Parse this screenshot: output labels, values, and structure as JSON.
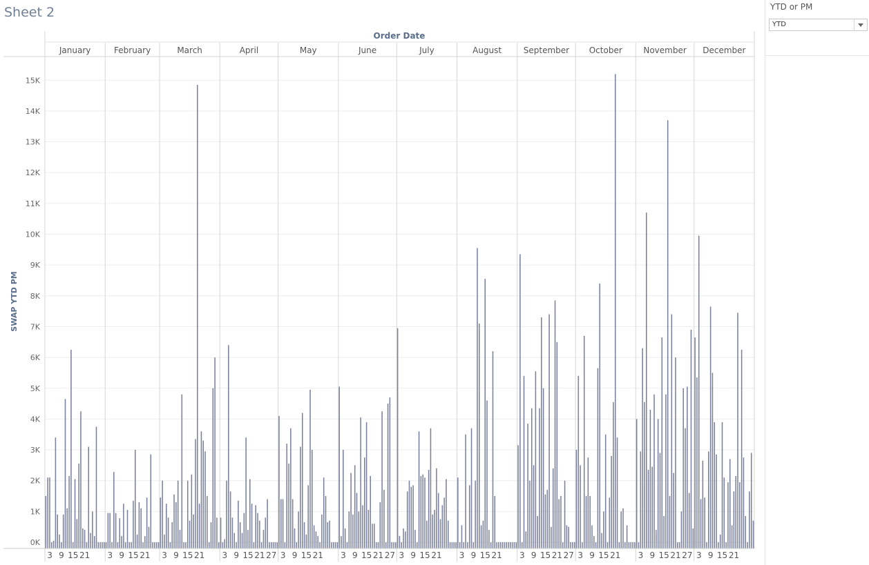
{
  "sheet": {
    "title": "Sheet 2"
  },
  "filter": {
    "title": "YTD or PM",
    "value": "YTD"
  },
  "chart_data": {
    "type": "bar",
    "title": "",
    "column_header": "Order Date",
    "ylabel": "SWAP YTD PM",
    "ylim": [
      -200,
      15800
    ],
    "yticks": [
      0,
      1000,
      2000,
      3000,
      4000,
      5000,
      6000,
      7000,
      8000,
      9000,
      10000,
      11000,
      12000,
      13000,
      14000,
      15000
    ],
    "ytick_labels": [
      "0K",
      "1K",
      "2K",
      "3K",
      "4K",
      "5K",
      "6K",
      "7K",
      "8K",
      "9K",
      "10K",
      "11K",
      "12K",
      "13K",
      "14K",
      "15K"
    ],
    "bar_color": "#7b819c",
    "grid": true,
    "months": [
      {
        "name": "January",
        "day_labels": [
          "3",
          "9",
          "15",
          "21"
        ],
        "values": [
          1500,
          2100,
          2100,
          0,
          50,
          3400,
          900,
          250,
          0,
          900,
          4650,
          1100,
          2150,
          6250,
          0,
          2050,
          750,
          2550,
          4250,
          450,
          400,
          0,
          3100,
          300,
          1000,
          200,
          3750,
          0,
          0,
          0,
          0
        ]
      },
      {
        "name": "February",
        "day_labels": [
          "3",
          "9",
          "15",
          "21"
        ],
        "values": [
          0,
          950,
          950,
          0,
          2280,
          950,
          0,
          780,
          200,
          1250,
          0,
          1050,
          0,
          0,
          1350,
          3000,
          250,
          1300,
          1100,
          0,
          200,
          1450,
          500,
          2850,
          0,
          0,
          0,
          0
        ]
      },
      {
        "name": "March",
        "day_labels": [
          "3",
          "9",
          "15",
          "21"
        ],
        "values": [
          1450,
          2000,
          250,
          1250,
          800,
          0,
          650,
          1550,
          1300,
          2000,
          400,
          4800,
          0,
          0,
          2000,
          700,
          2200,
          900,
          3350,
          14850,
          1250,
          3600,
          3300,
          2950,
          1500,
          0,
          650,
          5000,
          6000,
          800,
          0
        ]
      },
      {
        "name": "April",
        "day_labels": [
          "3",
          "9",
          "15",
          "21",
          "27"
        ],
        "values": [
          800,
          0,
          100,
          2000,
          6400,
          1650,
          800,
          300,
          0,
          1350,
          650,
          300,
          950,
          3400,
          400,
          2050,
          1250,
          0,
          1200,
          950,
          700,
          0,
          400,
          800,
          1400,
          0,
          0,
          0,
          0,
          0
        ]
      },
      {
        "name": "May",
        "day_labels": [
          "3",
          "9",
          "15",
          "21"
        ],
        "values": [
          4100,
          1400,
          1400,
          0,
          3200,
          2550,
          3700,
          1400,
          450,
          0,
          1000,
          3100,
          4200,
          650,
          250,
          1850,
          4950,
          3000,
          550,
          350,
          200,
          0,
          900,
          2100,
          1500,
          650,
          700,
          0,
          0,
          0,
          0
        ]
      },
      {
        "name": "June",
        "day_labels": [
          "3",
          "9",
          "15",
          "21",
          "27"
        ],
        "values": [
          5050,
          200,
          3000,
          450,
          0,
          1000,
          2250,
          900,
          2500,
          1600,
          1000,
          4050,
          1200,
          2750,
          3900,
          1050,
          2150,
          600,
          600,
          0,
          0,
          1300,
          4250,
          1700,
          0,
          4500,
          4700,
          0,
          0,
          0
        ]
      },
      {
        "name": "July",
        "day_labels": [
          "3",
          "9",
          "15",
          "21"
        ],
        "values": [
          6950,
          200,
          0,
          450,
          350,
          1650,
          2000,
          1800,
          1850,
          400,
          0,
          3600,
          2150,
          2200,
          2100,
          700,
          2350,
          3700,
          900,
          1050,
          2400,
          1600,
          750,
          1200,
          1450,
          2050,
          700,
          0,
          0,
          0,
          0
        ]
      },
      {
        "name": "August",
        "day_labels": [
          "3",
          "9",
          "15",
          "21"
        ],
        "values": [
          2100,
          0,
          550,
          0,
          3500,
          0,
          1850,
          3700,
          0,
          2000,
          9550,
          7100,
          550,
          700,
          8550,
          4600,
          400,
          0,
          6200,
          1500,
          0,
          0,
          0,
          0,
          0,
          0,
          0,
          0,
          0,
          0,
          0
        ]
      },
      {
        "name": "September",
        "day_labels": [
          "3",
          "9",
          "15",
          "21",
          "27"
        ],
        "values": [
          3150,
          9350,
          0,
          5400,
          350,
          3850,
          2000,
          4350,
          2500,
          5550,
          850,
          4350,
          7300,
          5000,
          1550,
          1700,
          7400,
          500,
          2400,
          7850,
          6500,
          1400,
          1500,
          0,
          2000,
          550,
          500,
          0,
          0,
          0
        ]
      },
      {
        "name": "October",
        "day_labels": [
          "3",
          "9",
          "15",
          "21"
        ],
        "values": [
          3000,
          5400,
          2500,
          0,
          6700,
          1500,
          2750,
          1500,
          550,
          200,
          0,
          5650,
          8400,
          300,
          1000,
          3500,
          0,
          1450,
          2800,
          4550,
          15200,
          3400,
          0,
          1000,
          1100,
          0,
          550,
          0,
          0,
          0,
          0
        ]
      },
      {
        "name": "November",
        "day_labels": [
          "3",
          "9",
          "15",
          "21",
          "27"
        ],
        "values": [
          4000,
          0,
          2950,
          6300,
          4550,
          10700,
          2350,
          4300,
          2450,
          4800,
          400,
          4000,
          2900,
          6650,
          850,
          4800,
          13700,
          1500,
          7400,
          2250,
          6000,
          0,
          0,
          1000,
          5000,
          3700,
          5050,
          1600,
          6900,
          450
        ]
      },
      {
        "name": "December",
        "day_labels": [
          "3",
          "9",
          "15",
          "21"
        ],
        "values": [
          6650,
          5350,
          9950,
          1400,
          2650,
          1450,
          0,
          2950,
          7650,
          5500,
          3900,
          2850,
          0,
          250,
          3900,
          2100,
          0,
          1950,
          2700,
          550,
          1650,
          2150,
          7450,
          1950,
          6250,
          2750,
          850,
          0,
          1650,
          2900,
          700
        ]
      }
    ]
  }
}
